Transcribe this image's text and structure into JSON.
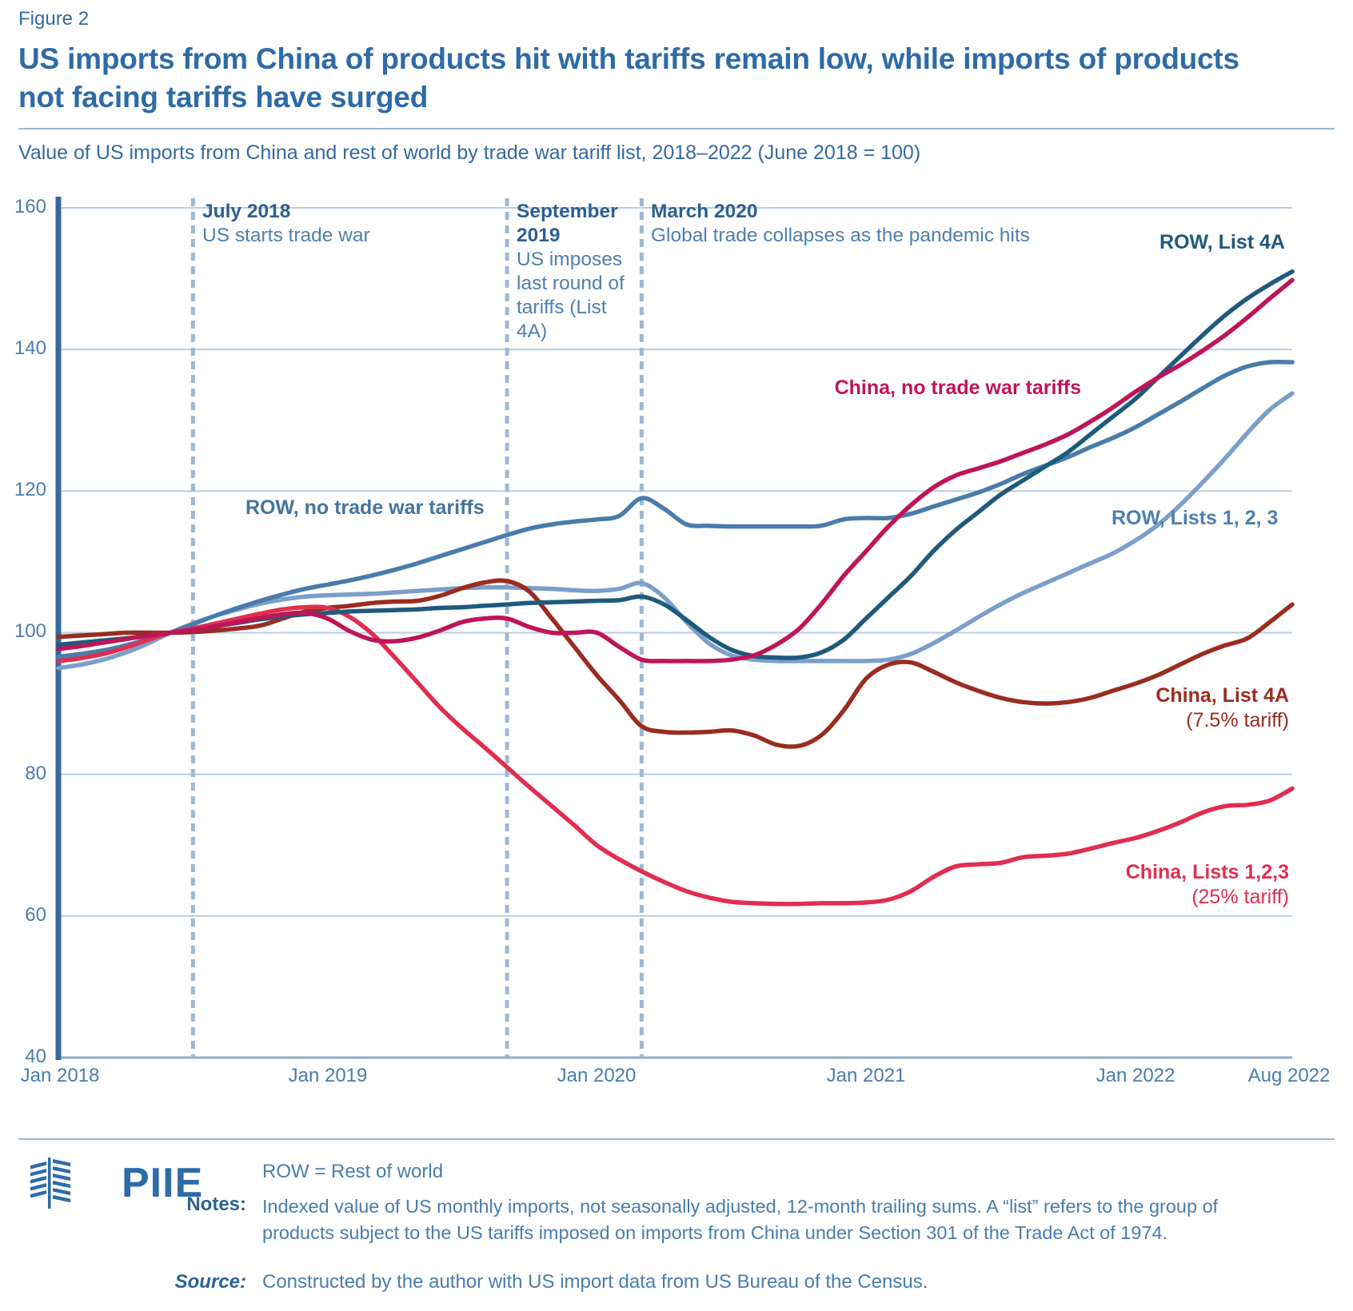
{
  "figure_label": "Figure 2",
  "title": "US imports from China of products hit with tariffs remain low, while imports of products not facing tariffs have surged",
  "subtitle": "Value of US imports from China and rest of world by trade war tariff list, 2018–2022 (June 2018 = 100)",
  "chart_data": {
    "type": "line",
    "title": "US imports from China of products hit with tariffs remain low, while imports of products not facing tariffs have surged",
    "subtitle": "Value of US imports from China and rest of world by trade war tariff list, 2018–2022 (June 2018 = 100)",
    "baseline_note": "June 2018 = 100",
    "x_unit": "months from Jan 2018 (monthly, Jan 2018 – Aug 2022)",
    "months_total": 55,
    "ylim": [
      40,
      160
    ],
    "grid": true,
    "legend_position": "inline-labels",
    "y_ticks": [
      160,
      140,
      120,
      100,
      80,
      60,
      40
    ],
    "x_ticks": [
      {
        "label": "Jan 2018",
        "month": 0
      },
      {
        "label": "Jan 2019",
        "month": 12
      },
      {
        "label": "Jan 2020",
        "month": 24
      },
      {
        "label": "Jan 2021",
        "month": 36
      },
      {
        "label": "Jan 2022",
        "month": 48
      },
      {
        "label": "Aug 2022",
        "month": 55
      }
    ],
    "events": [
      {
        "month": 6,
        "title": "July 2018",
        "body": "US starts trade war"
      },
      {
        "month": 20,
        "title": "September 2019",
        "body": "US imposes last round of tariffs (List 4A)"
      },
      {
        "month": 26,
        "title": "March 2020",
        "body": "Global trade collapses as the pandemic hits"
      }
    ],
    "series": [
      {
        "name": "ROW, List 4A",
        "color": "#1e5a7c",
        "label_color": "#1e5a7c",
        "z": 5,
        "values": [
          98.3,
          98.6,
          98.9,
          99.2,
          99.6,
          100,
          100.4,
          100.9,
          101.4,
          101.9,
          102.3,
          102.6,
          102.8,
          103,
          103.1,
          103.2,
          103.3,
          103.5,
          103.6,
          103.8,
          104,
          104.2,
          104.3,
          104.4,
          104.5,
          104.6,
          105.1,
          104,
          101.8,
          99.4,
          97.6,
          96.7,
          96.5,
          96.5,
          97.2,
          99,
          102,
          105,
          108,
          111.5,
          114.5,
          117,
          119.5,
          121.5,
          123.5,
          125.5,
          128,
          130.5,
          133,
          136,
          139,
          142,
          144.8,
          147.2,
          149.2,
          151
        ]
      },
      {
        "name": "China, no trade war tariffs",
        "color": "#c01458",
        "label_color": "#c01458",
        "z": 6,
        "values": [
          97.7,
          98.1,
          98.6,
          99.1,
          99.6,
          100,
          100.4,
          100.9,
          101.5,
          102.1,
          102.6,
          102.8,
          102,
          100.2,
          99,
          98.8,
          99.3,
          100.3,
          101.5,
          102,
          102,
          100.8,
          100,
          100,
          100,
          98,
          96.2,
          96,
          96,
          96,
          96.2,
          96.8,
          98.3,
          100.5,
          104,
          108,
          111.5,
          115,
          118,
          120.5,
          122.2,
          123.2,
          124.2,
          125.4,
          126.6,
          128,
          129.8,
          131.8,
          134,
          136,
          137.8,
          139.8,
          142,
          144.5,
          147.2,
          149.8
        ]
      },
      {
        "name": "ROW, no trade war tariffs",
        "color": "#4a7cab",
        "label_color": "#44749f",
        "z": 2,
        "values": [
          96.6,
          97,
          97.5,
          98.2,
          99.1,
          100,
          101.2,
          102.4,
          103.5,
          104.5,
          105.4,
          106.2,
          106.8,
          107.4,
          108.1,
          108.9,
          109.8,
          110.8,
          111.8,
          112.8,
          113.8,
          114.7,
          115.3,
          115.7,
          116,
          116.5,
          119,
          117.5,
          115.3,
          115.1,
          115,
          115,
          115,
          115,
          115.1,
          116,
          116.2,
          116.2,
          116.8,
          117.8,
          118.8,
          119.8,
          121,
          122.4,
          123.6,
          124.8,
          126.2,
          127.5,
          129,
          130.8,
          132.6,
          134.5,
          136.3,
          137.6,
          138.2,
          138.2
        ]
      },
      {
        "name": "ROW, Lists 1, 2, 3",
        "color": "#7b9fca",
        "label_color": "#4d7fb0",
        "z": 1,
        "values": [
          95,
          95.5,
          96.2,
          97.2,
          98.5,
          100,
          101.3,
          102.4,
          103.3,
          104.1,
          104.7,
          105.1,
          105.3,
          105.4,
          105.5,
          105.7,
          105.9,
          106.1,
          106.3,
          106.4,
          106.4,
          106.3,
          106.2,
          106,
          105.9,
          106.2,
          107,
          105,
          101.5,
          98.5,
          96.8,
          96.2,
          96,
          96,
          96,
          96,
          96,
          96.2,
          97,
          98.5,
          100.3,
          102.2,
          104,
          105.6,
          107,
          108.4,
          109.8,
          111.2,
          113,
          115.2,
          118,
          121.2,
          124.6,
          128.2,
          131.5,
          133.8
        ]
      },
      {
        "name": "China, List 4A",
        "sublabel": "(7.5% tariff)",
        "color": "#9b2c20",
        "label_color": "#9b2c20",
        "z": 3,
        "values": [
          99.4,
          99.6,
          99.8,
          100,
          100,
          100,
          100.1,
          100.3,
          100.6,
          101,
          102,
          103,
          103.5,
          103.8,
          104.2,
          104.4,
          104.5,
          105.2,
          106.3,
          107.1,
          107.3,
          105.8,
          102,
          98,
          94,
          90.5,
          86.8,
          86,
          85.9,
          86,
          86.2,
          85.5,
          84.2,
          84,
          85.5,
          89,
          93.5,
          95.5,
          95.8,
          94.5,
          93,
          91.8,
          90.8,
          90.2,
          90,
          90.2,
          90.8,
          91.8,
          92.8,
          94,
          95.5,
          97,
          98.2,
          99.2,
          101.5,
          104
        ]
      },
      {
        "name": "China, Lists 1,2,3",
        "sublabel": "(25% tariff)",
        "color": "#e02e50",
        "label_color": "#e02e50",
        "z": 4,
        "values": [
          96,
          96.4,
          97,
          97.9,
          99,
          100,
          100.6,
          101.3,
          102,
          102.7,
          103.3,
          103.6,
          103.5,
          102.2,
          99.8,
          96.5,
          93,
          89.5,
          86.5,
          83.8,
          81,
          78.2,
          75.5,
          72.8,
          70,
          68,
          66.3,
          64.8,
          63.5,
          62.6,
          62,
          61.8,
          61.7,
          61.7,
          61.8,
          61.8,
          61.9,
          62.3,
          63.5,
          65.5,
          67,
          67.3,
          67.5,
          68.3,
          68.5,
          68.8,
          69.5,
          70.3,
          71,
          72,
          73.2,
          74.6,
          75.5,
          75.7,
          76.3,
          78
        ]
      }
    ],
    "colors": {
      "grid": "#bccde0",
      "x_axis": "#8fabc8",
      "y_axis_bar": "#35689e",
      "event_dash": "#9db8d4"
    }
  },
  "footer": {
    "logo_text": "PIIE",
    "abbrev_note": "ROW = Rest of world",
    "notes_label": "Notes:",
    "notes": "Indexed value of US monthly imports, not seasonally adjusted, 12-month trailing sums. A “list” refers to the group of products subject to the US tariffs imposed on imports from China under Section 301 of the Trade Act of 1974.",
    "source_label": "Source:",
    "source": "Constructed by the author with US import data from US Bureau of the Census."
  }
}
